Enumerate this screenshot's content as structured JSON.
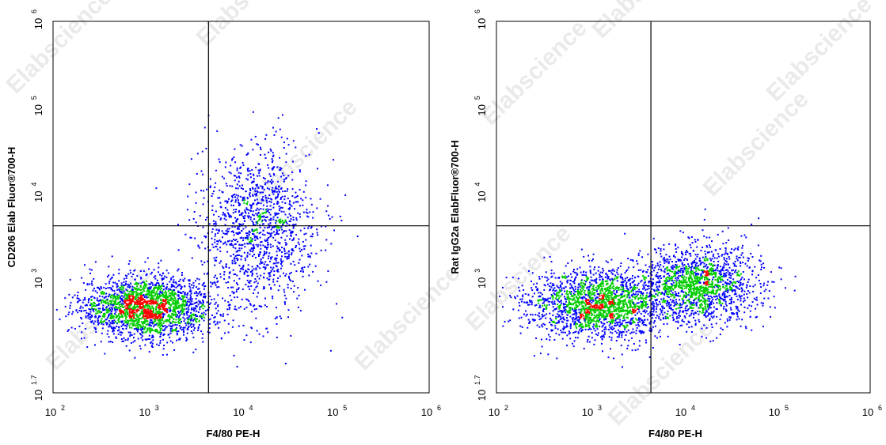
{
  "watermark": "Elabscience",
  "chart_data": [
    {
      "type": "scatter",
      "xlabel": "F4/80 PE-H",
      "ylabel": "CD206 Elab Fluor®700-H",
      "x_scale": "log",
      "y_scale": "log",
      "xlim": [
        100,
        1000000
      ],
      "ylim": [
        50.1187,
        1000000
      ],
      "x_ticks": [
        {
          "base": "10",
          "exp": "2",
          "value": 100
        },
        {
          "base": "10",
          "exp": "3",
          "value": 1000
        },
        {
          "base": "10",
          "exp": "4",
          "value": 10000
        },
        {
          "base": "10",
          "exp": "5",
          "value": 100000
        },
        {
          "base": "10",
          "exp": "6",
          "value": 1000000
        }
      ],
      "y_ticks": [
        {
          "base": "10",
          "exp": "1.7",
          "value": 50.1187
        },
        {
          "base": "10",
          "exp": "3",
          "value": 1000
        },
        {
          "base": "10",
          "exp": "4",
          "value": 10000
        },
        {
          "base": "10",
          "exp": "5",
          "value": 100000
        },
        {
          "base": "10",
          "exp": "6",
          "value": 1000000
        }
      ],
      "quadrant_gate": {
        "x": 4500,
        "y": 4300
      },
      "density_colors": [
        "#0000ff",
        "#00cc00",
        "#ff0000"
      ],
      "populations": [
        {
          "center_x": 1000,
          "center_y": 500,
          "spread_log_x": 0.35,
          "spread_log_y": 0.18,
          "count": 2200
        },
        {
          "center_x": 15000,
          "center_y": 4000,
          "spread_log_x": 0.32,
          "spread_log_y": 0.45,
          "count": 1300
        }
      ]
    },
    {
      "type": "scatter",
      "xlabel": "F4/80 PE-H",
      "ylabel": "Rat IgG2a ElabFluor®700-H",
      "x_scale": "log",
      "y_scale": "log",
      "xlim": [
        100,
        1000000
      ],
      "ylim": [
        50.1187,
        1000000
      ],
      "x_ticks": [
        {
          "base": "10",
          "exp": "2",
          "value": 100
        },
        {
          "base": "10",
          "exp": "3",
          "value": 1000
        },
        {
          "base": "10",
          "exp": "4",
          "value": 10000
        },
        {
          "base": "10",
          "exp": "5",
          "value": 100000
        },
        {
          "base": "10",
          "exp": "6",
          "value": 1000000
        }
      ],
      "y_ticks": [
        {
          "base": "10",
          "exp": "1.7",
          "value": 50.1187
        },
        {
          "base": "10",
          "exp": "3",
          "value": 1000
        },
        {
          "base": "10",
          "exp": "4",
          "value": 10000
        },
        {
          "base": "10",
          "exp": "5",
          "value": 100000
        },
        {
          "base": "10",
          "exp": "6",
          "value": 1000000
        }
      ],
      "quadrant_gate": {
        "x": 4500,
        "y": 4300
      },
      "density_colors": [
        "#0000ff",
        "#00cc00",
        "#ff0000"
      ],
      "populations": [
        {
          "center_x": 1200,
          "center_y": 550,
          "spread_log_x": 0.38,
          "spread_log_y": 0.2,
          "count": 2000
        },
        {
          "center_x": 15000,
          "center_y": 900,
          "spread_log_x": 0.3,
          "spread_log_y": 0.22,
          "count": 1500
        }
      ]
    }
  ]
}
